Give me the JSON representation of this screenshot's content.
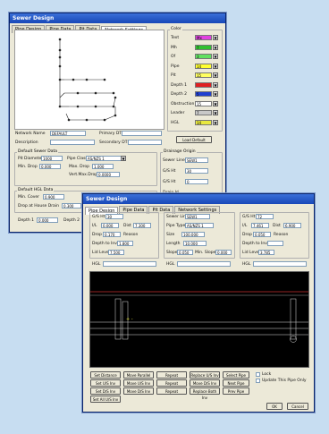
{
  "window1": {
    "title": "Sewer Design",
    "tabs": [
      "Pipe Design",
      "Pipe Data",
      "Pit Data",
      "Network Settings"
    ],
    "color_title": "Color",
    "color_rows": [
      {
        "label": "Text",
        "value": "Mx",
        "color": "#e040e0"
      },
      {
        "label": "Mh",
        "value": "7",
        "color": "#30c030"
      },
      {
        "label": "Of",
        "value": "3",
        "color": "#60e060"
      },
      {
        "label": "Pipe",
        "value": "14",
        "color": "#ffff30"
      },
      {
        "label": "Pit",
        "value": "15",
        "color": "#ffff60"
      },
      {
        "label": "Depth 1",
        "value": "",
        "color": "#e02020"
      },
      {
        "label": "Depth 2",
        "value": "5",
        "color": "#2040d0"
      },
      {
        "label": "Obstruction",
        "value": "15",
        "color": "#ffffff"
      },
      {
        "label": "Leader",
        "value": "7",
        "color": "#c8c8c8"
      },
      {
        "label": "HGL",
        "value": "14",
        "color": "#e8e840"
      }
    ],
    "network_name_label": "Network Name",
    "network_name_value": "DEFAULT",
    "description_label": "Description",
    "primary_dtm_label": "Primary DTM",
    "secondary_dtm_label": "Secondary DTM",
    "load_default_label": "Load Default",
    "default_sewer_title": "Default Sewer Data",
    "pit_diameter_label": "Pit Diameter",
    "pit_diameter_value": "1000",
    "pipe_class_label": "Pipe Class",
    "pipe_class_value": "AS/NZS 1",
    "min_drop_label": "Min. Drop",
    "min_drop_value": "0.000",
    "max_drop_label": "Max. Drop",
    "max_drop_value": "1.000",
    "vert_max_drop_label": "Vert.Max.Drop",
    "vert_max_drop_value": "0.0000",
    "drainage_origin_title": "Drainage Origin",
    "sewer_line_label": "Sewer Line",
    "sewer_line_value": "SEW1",
    "ch_label": "G/S Ht",
    "ch_value": "30",
    "gs_label": "G/S Ht",
    "gs_value": "0",
    "default_hgl_title": "Default HGL Data",
    "min_cover_label": "Min. Cover",
    "min_cover_value": "0.900",
    "drop_house_label": "Drop at House Drain",
    "drop_house_value": "0.300",
    "depth1_label": "Depth 1",
    "depth1_value": "0.000",
    "depth2_label": "Depth 2",
    "depth2_value": "0.0",
    "drain_id_label": "Drain Id"
  },
  "window2": {
    "title": "Sewer Design",
    "tabs": [
      "Pipe Design",
      "Pipe Data",
      "Pit Data",
      "Network Settings"
    ],
    "col1": {
      "gs_label": "G/S Ht",
      "gs_value": "30",
      "ilh_label": "I/L",
      "ilh_value": "0.000",
      "dist_label": "Dist",
      "dist_value": "7.300",
      "drop_label": "Drop",
      "drop_value": "0.170",
      "reason_label": "Reason",
      "depth_label": "Depth to Invert",
      "depth_value": "1.800",
      "lid_label": "Lid Level",
      "lid_value": "7.500",
      "hgl_label": "HGL"
    },
    "col2": {
      "sewer_label": "Sewer Line",
      "sewer_value": "SEW1",
      "pipe_label": "Pipe Type",
      "pipe_value": "AS/NZS 1",
      "size_label": "Size",
      "size_value": "100.000",
      "length_label": "Length",
      "length_value": "10.000",
      "slope_label": "Slope",
      "slope_value": "0.050",
      "minslope_label": "Min. Slope",
      "minslope_value": "0.000",
      "hgl_label": "HGL"
    },
    "col3": {
      "gs_label": "G/S Ht",
      "gs_value": "72",
      "ilh_label": "I/L",
      "ilh_value": "7.461",
      "dist_label": "Dist",
      "dist_value": "6.900",
      "drop_label": "Drop",
      "drop_value": "0.050",
      "reason_label": "Reason",
      "depth_label": "Depth to Invert",
      "lid_label": "Lid Level",
      "lid_value": "3.785",
      "hgl_label": "HGL"
    },
    "buttons": [
      [
        "Set Distance",
        "Move Parallel",
        "Repeat",
        "Replace U/S Inv",
        "Select Pipe"
      ],
      [
        "Set U/S Inv",
        "Move U/S Inv",
        "Repeat",
        "Move D/S Inv",
        "Next Pipe"
      ],
      [
        "Set D/S Inv",
        "Move D/S Inv",
        "Repeat",
        "Replace Both Inv",
        "Prev Pipe"
      ],
      [
        "Set All U/S Inv",
        "",
        "",
        "",
        ""
      ]
    ],
    "lock_label": "Lock",
    "update_label": "Update This Pipe Only",
    "ok_label": "OK",
    "cancel_label": "Cancel"
  }
}
